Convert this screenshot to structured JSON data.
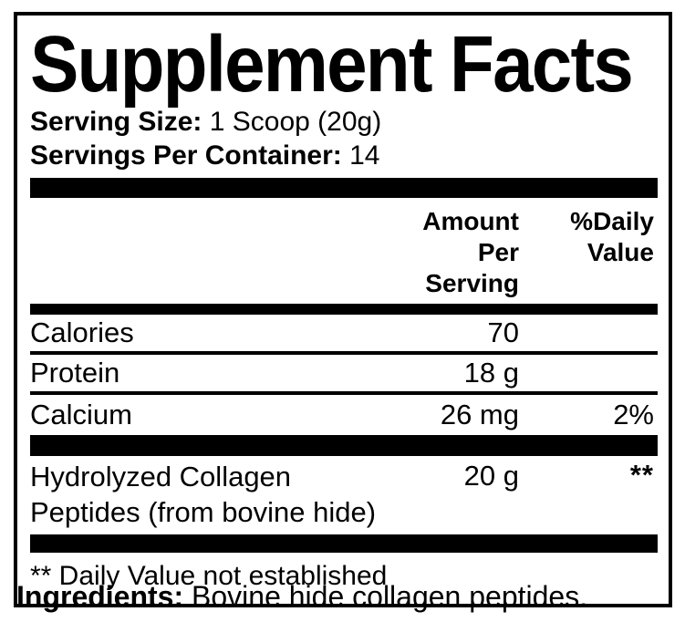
{
  "panel": {
    "title": "Supplement Facts",
    "serving_size_label": "Serving Size:",
    "serving_size_value": "1 Scoop (20g)",
    "servings_per_container_label": "Servings Per Container:",
    "servings_per_container_value": "14"
  },
  "table": {
    "amount_header": "Amount Per\nServing",
    "daily_value_header": "%Daily\nValue",
    "rows": [
      {
        "name": "Calories",
        "amount": "70",
        "dv": ""
      },
      {
        "name": "Protein",
        "amount": "18 g",
        "dv": ""
      },
      {
        "name": "Calcium",
        "amount": "26 mg",
        "dv": "2%"
      }
    ],
    "collagen_row": {
      "name": "Hydrolyzed Collagen\nPeptides (from bovine hide)",
      "amount": "20 g",
      "dv": "**"
    },
    "footnote": "** Daily Value not established"
  },
  "ingredients": {
    "label": "Ingredients:",
    "value": "Bovine hide collagen peptides."
  },
  "colors": {
    "text": "#000000",
    "background": "#ffffff"
  }
}
